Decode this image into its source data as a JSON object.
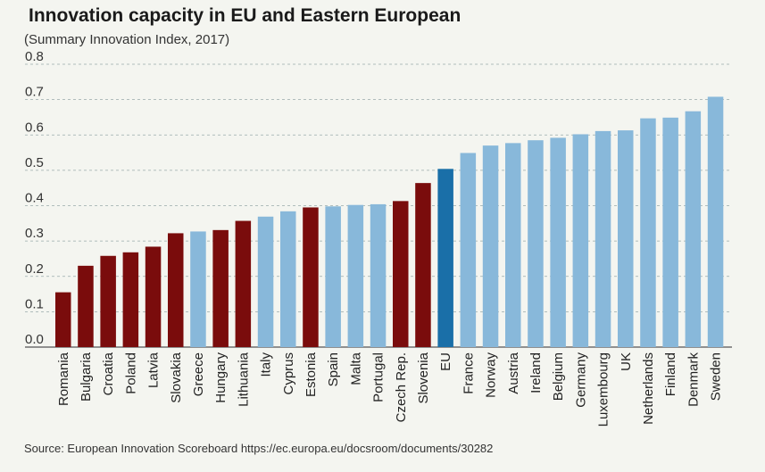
{
  "chart_data": {
    "type": "bar",
    "title": "Innovation capacity in EU and Eastern European",
    "subtitle": "(Summary Innovation Index, 2017)",
    "source": "Source: European Innovation Scoreboard https://ec.europa.eu/docsroom/documents/30282",
    "xlabel": "",
    "ylabel": "",
    "ylim": [
      0,
      0.8
    ],
    "yticks": [
      "0.0",
      "0.1",
      "0.2",
      "0.3",
      "0.4",
      "0.5",
      "0.6",
      "0.7",
      "0.8"
    ],
    "grid": true,
    "colors": {
      "eastern": "#7a0c0c",
      "other": "#88b8da",
      "eu": "#1a6fa8"
    },
    "categories": [
      "Romania",
      "Bulgaria",
      "Croatia",
      "Poland",
      "Latvia",
      "Slovakia",
      "Greece",
      "Hungary",
      "Lithuania",
      "Italy",
      "Cyprus",
      "Estonia",
      "Spain",
      "Malta",
      "Portugal",
      "Czech Rep.",
      "Slovenia",
      "EU",
      "France",
      "Norway",
      "Austria",
      "Ireland",
      "Belgium",
      "Germany",
      "Luxembourg",
      "UK",
      "Netherlands",
      "Finland",
      "Denmark",
      "Sweden"
    ],
    "values": [
      0.155,
      0.23,
      0.258,
      0.268,
      0.284,
      0.322,
      0.327,
      0.331,
      0.357,
      0.369,
      0.384,
      0.395,
      0.398,
      0.402,
      0.404,
      0.413,
      0.464,
      0.504,
      0.549,
      0.57,
      0.577,
      0.585,
      0.592,
      0.602,
      0.611,
      0.613,
      0.647,
      0.649,
      0.667,
      0.708
    ],
    "groups": [
      "eastern",
      "eastern",
      "eastern",
      "eastern",
      "eastern",
      "eastern",
      "other",
      "eastern",
      "eastern",
      "other",
      "other",
      "eastern",
      "other",
      "other",
      "other",
      "eastern",
      "eastern",
      "eu",
      "other",
      "other",
      "other",
      "other",
      "other",
      "other",
      "other",
      "other",
      "other",
      "other",
      "other",
      "other"
    ]
  }
}
